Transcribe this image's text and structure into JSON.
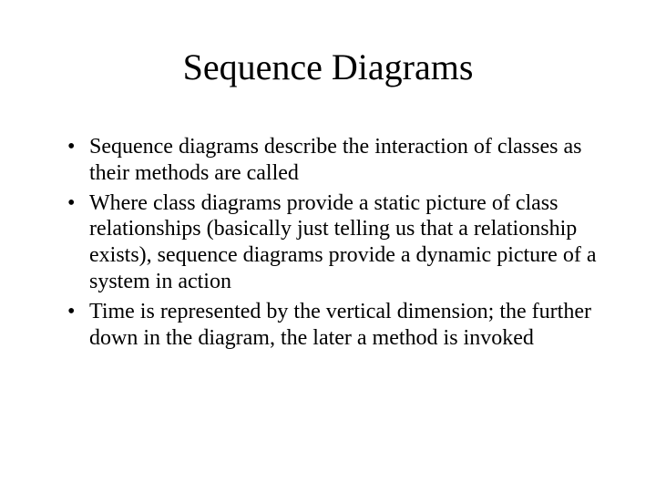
{
  "slide": {
    "title": "Sequence Diagrams",
    "bullets": [
      "Sequence diagrams describe the interaction of classes as their methods are called",
      "Where class diagrams provide a static picture of class relationships (basically just telling us that a relationship exists), sequence diagrams provide a dynamic picture of a system in action",
      "Time is represented by the vertical dimension; the further down in the diagram, the later a method is invoked"
    ],
    "title_fontsize": 40,
    "body_fontsize": 24,
    "background_color": "#ffffff",
    "text_color": "#000000",
    "font_family": "Times New Roman"
  }
}
